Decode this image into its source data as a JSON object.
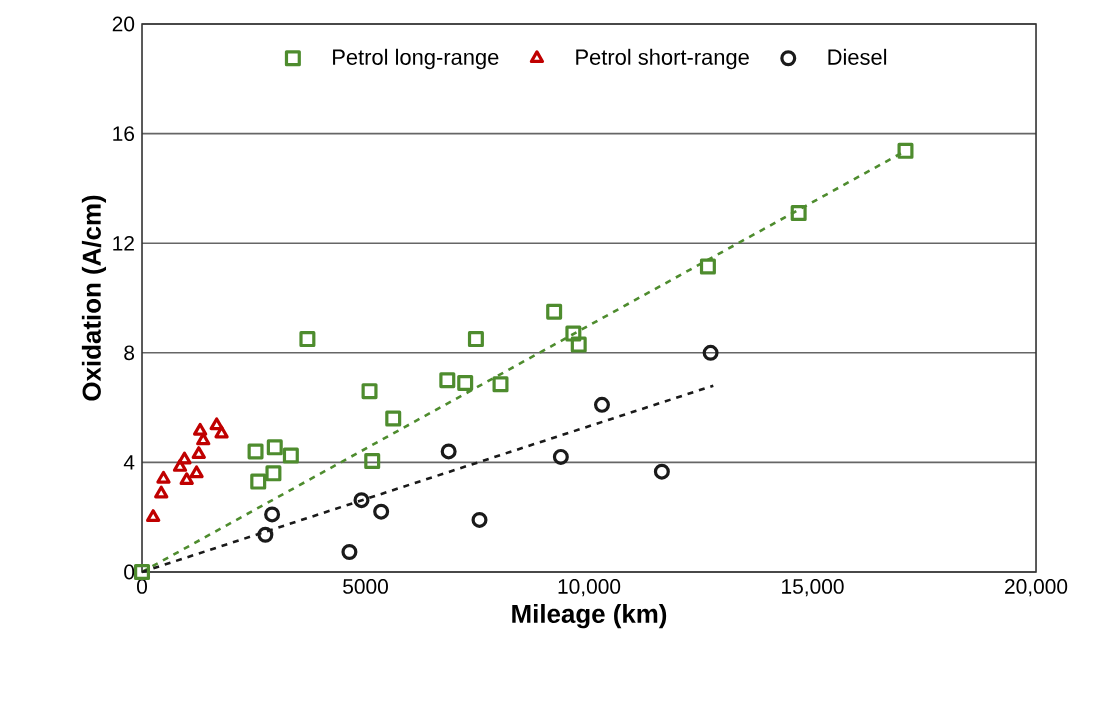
{
  "chart_data": {
    "type": "scatter",
    "xlabel": "Mileage (km)",
    "ylabel": "Oxidation (A/cm)",
    "xlim": [
      0,
      20000
    ],
    "ylim": [
      0,
      20
    ],
    "xticks": [
      0,
      5000,
      {
        "value": 10000,
        "label": "10,000"
      },
      {
        "value": 15000,
        "label": "15,000"
      },
      {
        "value": 20000,
        "label": "20,000"
      }
    ],
    "yticks": [
      0,
      4,
      8,
      12,
      16,
      20
    ],
    "grid": "y",
    "legend": "top",
    "series": [
      {
        "name": "Petrol long-range",
        "color": "#4e8c2e",
        "marker": "square",
        "x": [
          0,
          3700,
          2540,
          2970,
          3330,
          2940,
          2600,
          5090,
          5620,
          5150,
          6830,
          7230,
          7470,
          8020,
          9220,
          9650,
          9770,
          12660,
          14690,
          17080
        ],
        "values": [
          0,
          8.5,
          4.4,
          4.55,
          4.25,
          3.6,
          3.3,
          6.6,
          5.6,
          4.05,
          7.0,
          6.9,
          8.5,
          6.85,
          9.5,
          8.7,
          8.3,
          11.15,
          13.1,
          15.37
        ]
      },
      {
        "name": "Petrol short-range",
        "color": "#c00000",
        "marker": "triangle",
        "x": [
          250,
          430,
          480,
          850,
          1000,
          1220,
          950,
          1270,
          1370,
          1300,
          1670,
          1780
        ],
        "values": [
          2.0,
          2.86,
          3.4,
          3.83,
          3.35,
          3.6,
          4.1,
          4.3,
          4.8,
          5.15,
          5.35,
          5.05
        ]
      },
      {
        "name": "Diesel",
        "color": "#1a1a1a",
        "marker": "circle",
        "x": [
          2910,
          2760,
          4910,
          5350,
          4640,
          6860,
          7550,
          9370,
          10290,
          12720,
          11630
        ],
        "values": [
          2.1,
          1.36,
          2.62,
          2.2,
          0.73,
          4.4,
          1.9,
          4.2,
          6.1,
          8.0,
          3.66
        ]
      },
      {
        "type": "line",
        "color": "#4e8c2e",
        "marker": "none",
        "line_style": "dashed",
        "x": [
          0,
          17080
        ],
        "values": [
          0,
          15.37
        ]
      },
      {
        "type": "line",
        "color": "#1a1a1a",
        "marker": "none",
        "line_style": "dashed",
        "x": [
          0,
          12780
        ],
        "values": [
          0,
          6.8
        ]
      }
    ]
  }
}
